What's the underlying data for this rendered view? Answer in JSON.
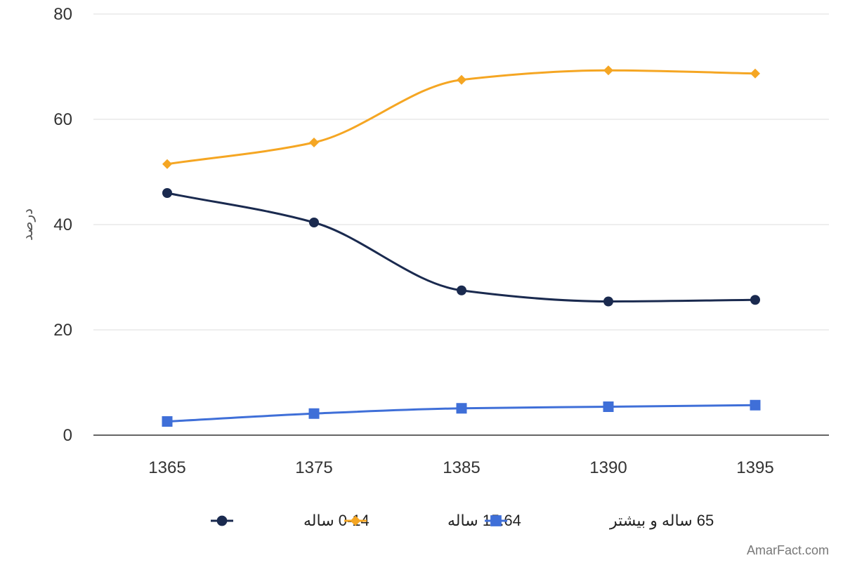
{
  "chart_data": {
    "type": "line",
    "title": "",
    "xlabel": "",
    "ylabel": "درصد",
    "categories": [
      "1365",
      "1375",
      "1385",
      "1390",
      "1395"
    ],
    "ylim": [
      0,
      80
    ],
    "yticks": [
      0,
      20,
      40,
      60,
      80
    ],
    "grid": true,
    "smooth": true,
    "legend_position": "bottom",
    "series": [
      {
        "name": "0-14 ساله",
        "color": "#1a2a4f",
        "marker": "circle",
        "values": [
          46.0,
          40.4,
          27.5,
          25.4,
          25.7
        ]
      },
      {
        "name": "15.64 ساله",
        "color": "#f5a623",
        "marker": "diamond",
        "values": [
          51.5,
          55.6,
          67.5,
          69.3,
          68.7
        ]
      },
      {
        "name": "65 ساله و بیشتر",
        "color": "#3f6fd8",
        "marker": "square",
        "values": [
          2.6,
          4.1,
          5.1,
          5.4,
          5.7
        ]
      }
    ]
  },
  "credit": "AmarFact.com"
}
